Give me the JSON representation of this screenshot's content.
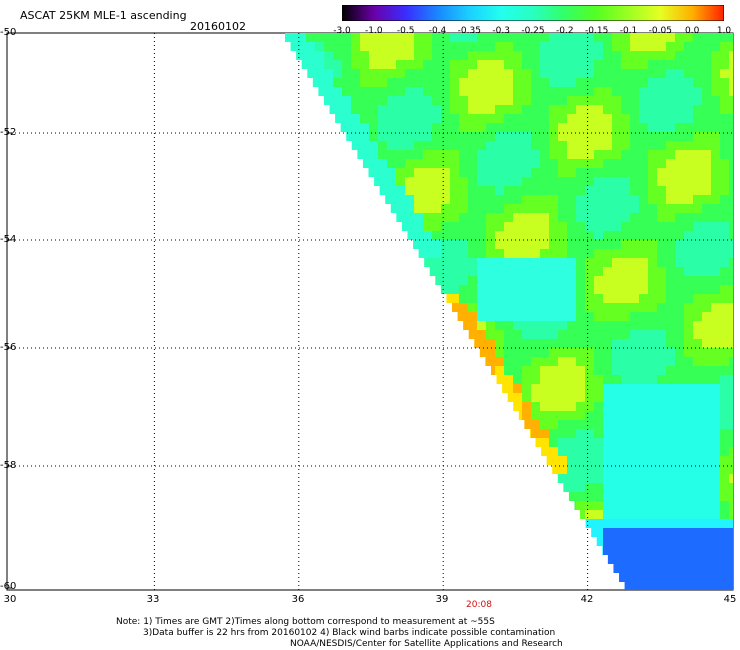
{
  "header": {
    "title": "ASCAT 25KM MLE-1 ascending",
    "date": "20160102"
  },
  "colorbar": {
    "labels": [
      "-3.0",
      "-1.0",
      "-0.5",
      "-0.4",
      "-0.35",
      "-0.3",
      "-0.25",
      "-0.2",
      "-0.15",
      "-0.1",
      "-0.05",
      "0.0",
      "1.0"
    ],
    "colors": [
      "#000000",
      "#6a00a8",
      "#3a2dff",
      "#1a86ff",
      "#1ad0ff",
      "#22ffee",
      "#28ffc0",
      "#33ff66",
      "#55ff22",
      "#9cff22",
      "#e6ff22",
      "#ffb000",
      "#ff2000"
    ]
  },
  "map": {
    "lat_labels": [
      "-50",
      "-52",
      "-54",
      "-56",
      "-58",
      "-60"
    ],
    "lon_labels": [
      "30",
      "33",
      "36",
      "39",
      "42",
      "45"
    ],
    "lat_range": [
      -60,
      -50
    ],
    "lon_range": [
      30,
      45
    ],
    "pass_time": "20:08",
    "grid": "dotted",
    "legend": "top-right"
  },
  "notes": {
    "line1": "Note: 1) Times are GMT 2)Times along bottom correspond to measurement at ~55S",
    "line2": "3)Data buffer is 22 hrs from 20160102 4) Black wind barbs indicate possible contamination",
    "line3": "NOAA/NESDIS/Center for Satellite Applications and Research"
  }
}
